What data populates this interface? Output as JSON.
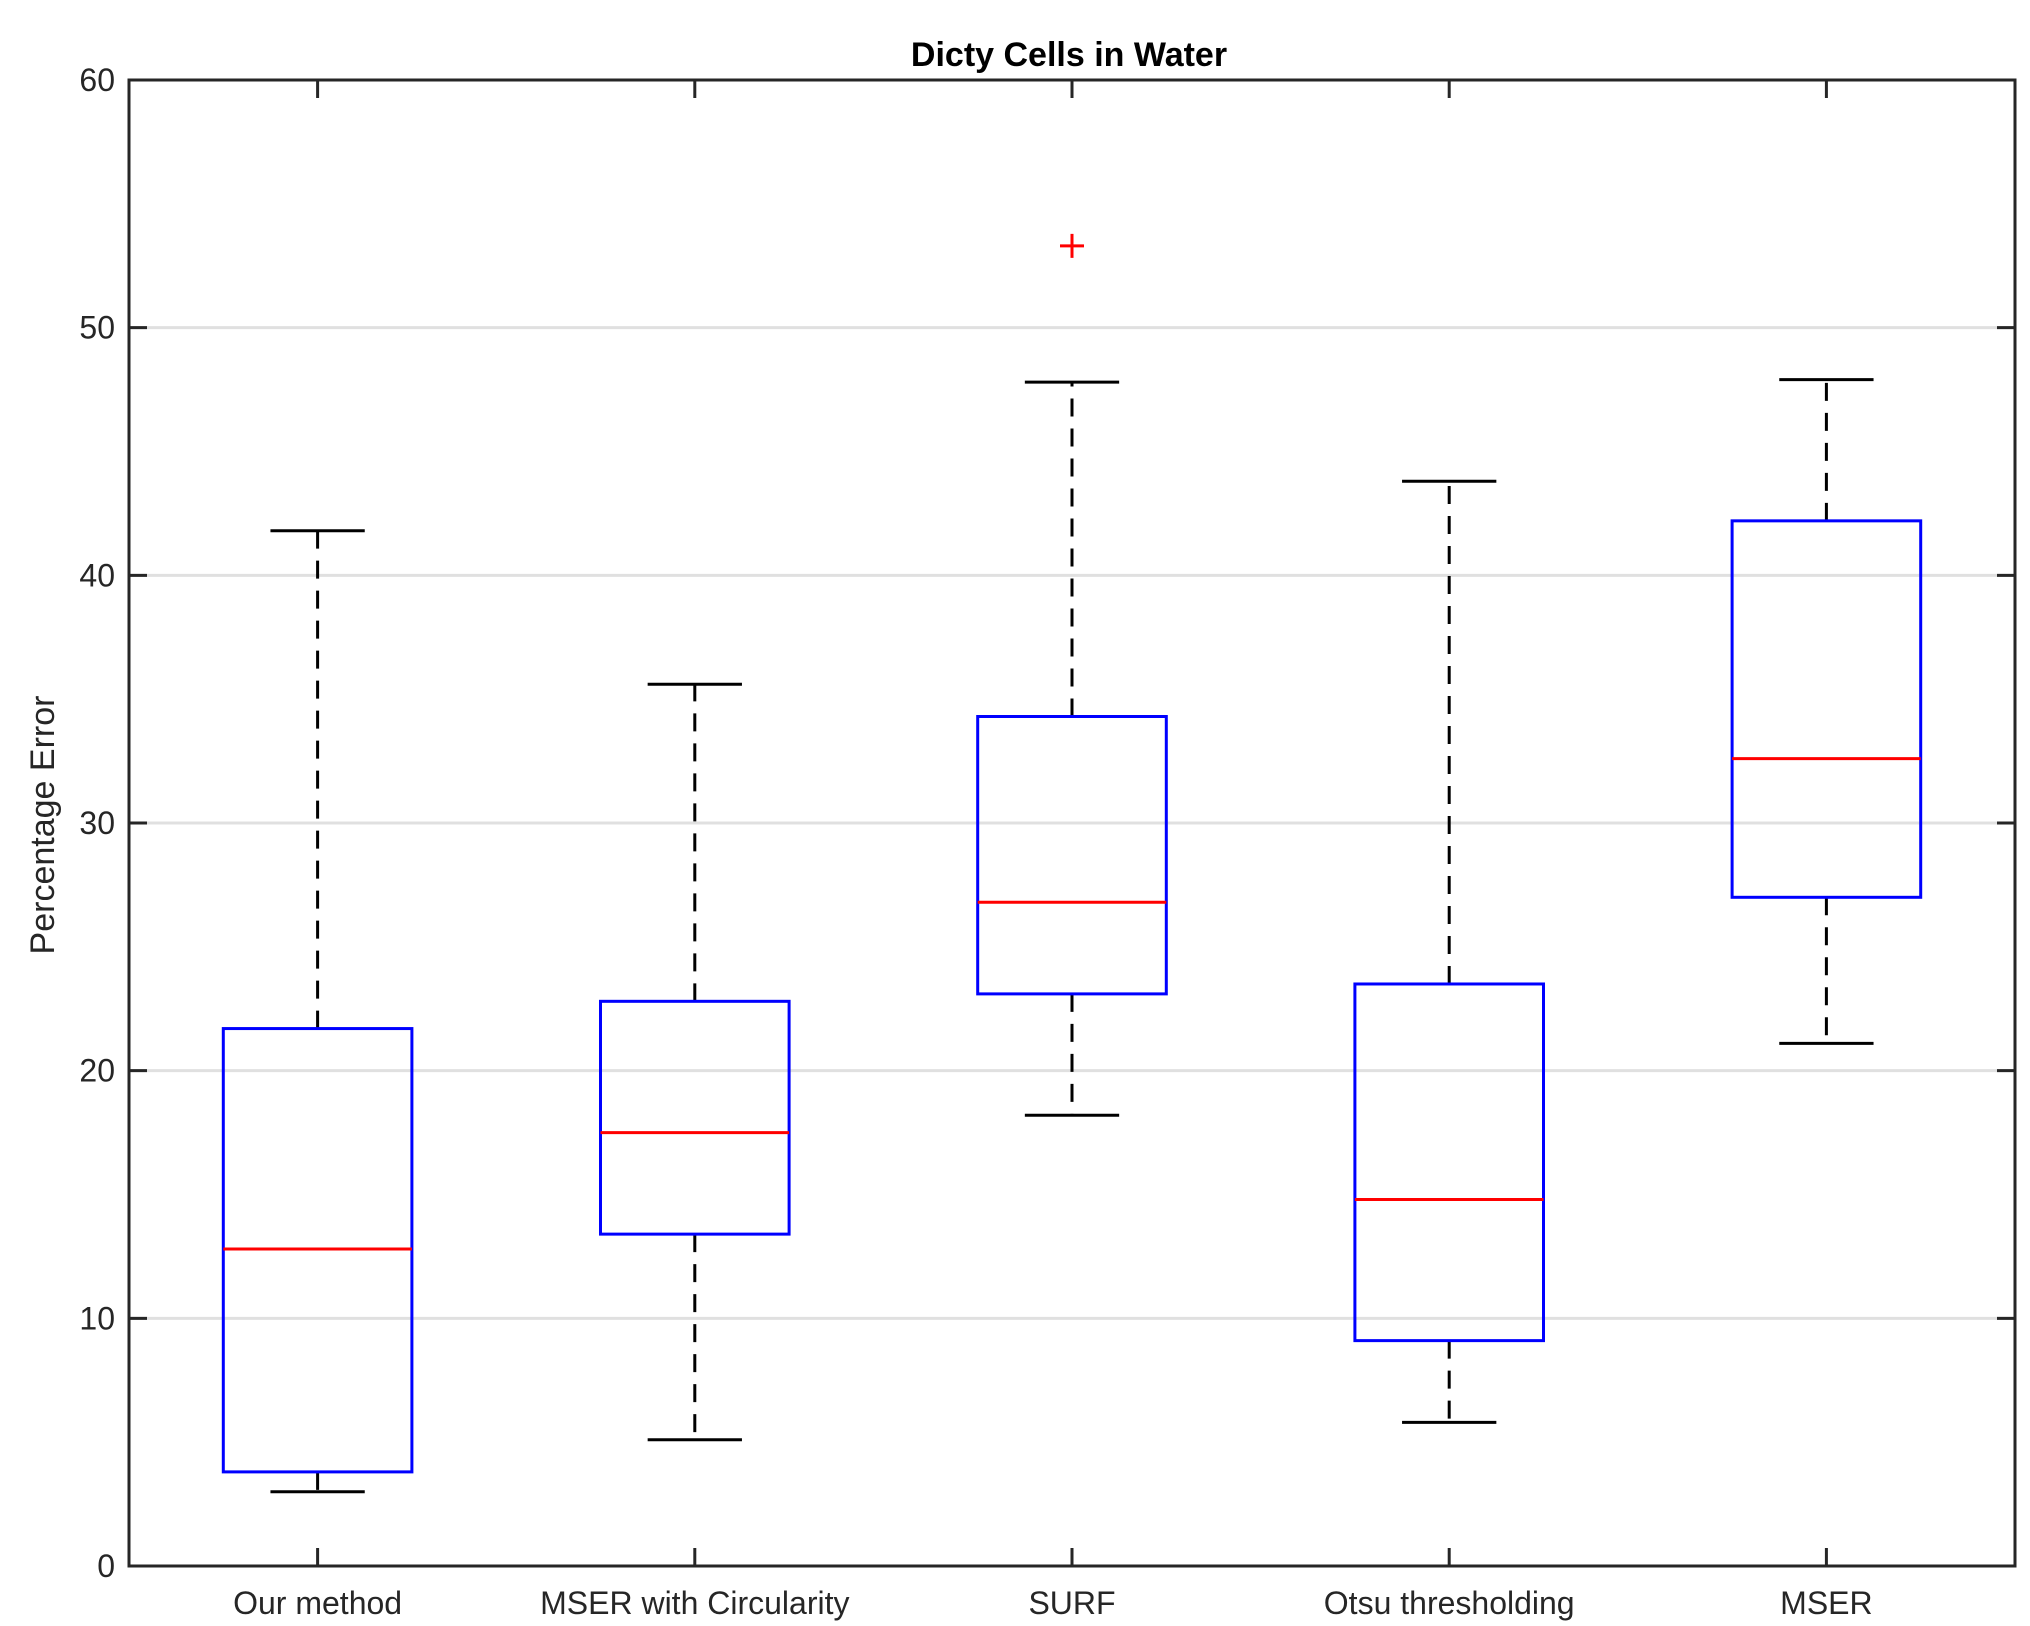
{
  "chart_data": {
    "type": "boxplot",
    "title": "Dicty Cells in Water",
    "xlabel": "",
    "ylabel": "Percentage Error",
    "ylim": [
      0,
      60
    ],
    "yticks": [
      0,
      10,
      20,
      30,
      40,
      50,
      60
    ],
    "ytick_labels": [
      "0",
      "10",
      "20",
      "30",
      "40",
      "50",
      "60"
    ],
    "grid": "horizontal",
    "categories": [
      "Our method",
      "MSER with Circularity",
      "SURF",
      "Otsu thresholding",
      "MSER"
    ],
    "boxes": [
      {
        "name": "Our method",
        "whisker_low": 3.0,
        "q1": 3.8,
        "median": 12.8,
        "q3": 21.7,
        "whisker_high": 41.8,
        "outliers": []
      },
      {
        "name": "MSER with Circularity",
        "whisker_low": 5.1,
        "q1": 13.4,
        "median": 17.5,
        "q3": 22.8,
        "whisker_high": 35.6,
        "outliers": []
      },
      {
        "name": "SURF",
        "whisker_low": 18.2,
        "q1": 23.1,
        "median": 26.8,
        "q3": 34.3,
        "whisker_high": 47.8,
        "outliers": [
          53.3
        ]
      },
      {
        "name": "Otsu thresholding",
        "whisker_low": 5.8,
        "q1": 9.1,
        "median": 14.8,
        "q3": 23.5,
        "whisker_high": 43.8,
        "outliers": []
      },
      {
        "name": "MSER",
        "whisker_low": 21.1,
        "q1": 27.0,
        "median": 32.6,
        "q3": 42.2,
        "whisker_high": 47.9,
        "outliers": []
      }
    ],
    "colors": {
      "box": "#0000ff",
      "median": "#ff0000",
      "whisker": "#000000",
      "outlier": "#ff0000",
      "grid": "#e0e0e0",
      "axis": "#262626"
    }
  }
}
